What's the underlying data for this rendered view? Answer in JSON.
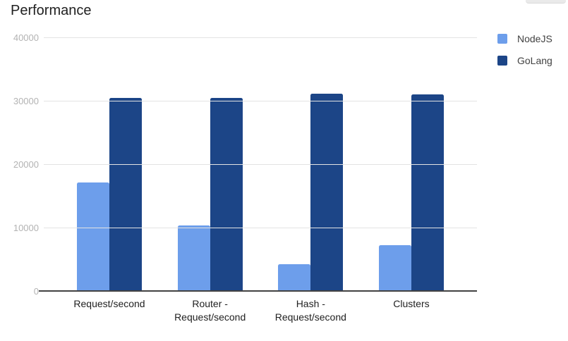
{
  "chart_data": {
    "type": "bar",
    "title": "Performance",
    "categories": [
      [
        "Request/second"
      ],
      [
        "Router -",
        "Request/second"
      ],
      [
        "Hash -",
        "Request/second"
      ],
      [
        "Clusters"
      ]
    ],
    "series": [
      {
        "name": "NodeJS",
        "color": "#6d9eeb",
        "values": [
          17100,
          10300,
          4200,
          7200
        ]
      },
      {
        "name": "GoLang",
        "color": "#1c4587",
        "values": [
          30500,
          30400,
          31100,
          31000
        ]
      }
    ],
    "ylim": [
      0,
      40000
    ],
    "ytick_interval": 10000,
    "ytick_labels": [
      "0",
      "10000",
      "20000",
      "30000",
      "40000"
    ],
    "xlabel": "",
    "ylabel": "",
    "grid": "horizontal",
    "legend_position": "right"
  },
  "style": {
    "series_colors": {
      "NodeJS": "#6d9eeb",
      "GoLang": "#1c4587"
    },
    "gridline_color": "#e3e3e3",
    "axis_line_color": "#424242",
    "ytick_text_color": "#b3b3b3",
    "xtick_text_color": "#212121",
    "legend_text_color": "#424242",
    "title_text_color": "#212121",
    "background_color": "#ffffff"
  }
}
